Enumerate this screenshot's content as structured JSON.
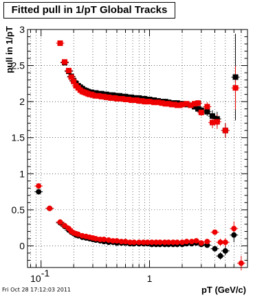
{
  "chart_data": {
    "type": "scatter",
    "title": "Fitted pull in 1/pT  Global Tracks",
    "xlabel": "pT (GeV/c)",
    "ylabel": "pull in 1/pT",
    "x_scale": "log",
    "xlim": [
      0.075,
      8.0
    ],
    "ylim": [
      -0.3,
      3.0
    ],
    "grid": true,
    "x_tick_labels": [
      {
        "value": 0.1,
        "label": "10",
        "sup": "-1"
      },
      {
        "value": 1,
        "label": "1",
        "sup": ""
      }
    ],
    "y_tick_labels": [
      "0",
      "0.5",
      "1",
      "1.5",
      "2",
      "2.5",
      "3"
    ],
    "series": [
      {
        "color": "#000000",
        "marker": "square",
        "x": [
          0.15,
          0.165,
          0.18,
          0.19,
          0.2,
          0.21,
          0.22,
          0.23,
          0.24,
          0.25,
          0.26,
          0.27,
          0.28,
          0.29,
          0.3,
          0.32,
          0.34,
          0.36,
          0.38,
          0.4,
          0.42,
          0.44,
          0.46,
          0.48,
          0.5,
          0.53,
          0.56,
          0.6,
          0.64,
          0.68,
          0.72,
          0.76,
          0.8,
          0.85,
          0.9,
          0.95,
          1.0,
          1.1,
          1.2,
          1.3,
          1.4,
          1.5,
          1.6,
          1.7,
          1.8,
          1.9,
          2.0,
          2.2,
          2.4,
          2.6,
          2.8,
          3.0,
          3.4,
          3.8,
          4.2,
          5.0,
          6.2
        ],
        "values": [
          2.81,
          2.54,
          2.42,
          2.35,
          2.29,
          2.25,
          2.22,
          2.2,
          2.18,
          2.16,
          2.15,
          2.14,
          2.13,
          2.13,
          2.12,
          2.12,
          2.11,
          2.11,
          2.1,
          2.1,
          2.09,
          2.09,
          2.09,
          2.08,
          2.08,
          2.08,
          2.07,
          2.07,
          2.06,
          2.06,
          2.05,
          2.05,
          2.05,
          2.04,
          2.04,
          2.03,
          2.03,
          2.02,
          2.01,
          2.0,
          2.0,
          1.99,
          1.98,
          1.98,
          1.98,
          1.97,
          1.97,
          1.96,
          1.95,
          1.93,
          1.9,
          1.88,
          1.86,
          1.8,
          1.76,
          1.6,
          2.34
        ],
        "errors": [
          0,
          0,
          0,
          0,
          0,
          0,
          0,
          0,
          0,
          0,
          0,
          0,
          0,
          0,
          0,
          0,
          0,
          0,
          0,
          0,
          0,
          0,
          0,
          0,
          0,
          0,
          0,
          0,
          0,
          0,
          0,
          0,
          0,
          0,
          0,
          0.01,
          0.01,
          0.01,
          0.01,
          0.02,
          0.02,
          0.02,
          0.02,
          0.02,
          0.02,
          0.03,
          0.03,
          0.03,
          0.03,
          0.04,
          0.04,
          0.05,
          0.06,
          0.08,
          0.1,
          0.1,
          0.6
        ]
      },
      {
        "color": "#ee0000",
        "marker": "square",
        "x": [
          0.15,
          0.165,
          0.18,
          0.19,
          0.2,
          0.21,
          0.22,
          0.23,
          0.24,
          0.25,
          0.26,
          0.27,
          0.28,
          0.29,
          0.3,
          0.32,
          0.34,
          0.36,
          0.38,
          0.4,
          0.42,
          0.44,
          0.46,
          0.48,
          0.5,
          0.53,
          0.56,
          0.6,
          0.64,
          0.68,
          0.72,
          0.76,
          0.8,
          0.85,
          0.9,
          0.95,
          1.0,
          1.1,
          1.2,
          1.3,
          1.4,
          1.5,
          1.6,
          1.7,
          1.8,
          1.9,
          2.0,
          2.2,
          2.4,
          2.6,
          2.8,
          3.0,
          3.4,
          3.8,
          4.2,
          5.0,
          6.2
        ],
        "values": [
          2.81,
          2.55,
          2.43,
          2.34,
          2.28,
          2.22,
          2.19,
          2.16,
          2.14,
          2.13,
          2.12,
          2.11,
          2.1,
          2.1,
          2.09,
          2.08,
          2.08,
          2.07,
          2.07,
          2.06,
          2.06,
          2.05,
          2.05,
          2.05,
          2.04,
          2.04,
          2.04,
          2.03,
          2.03,
          2.02,
          2.02,
          2.02,
          2.01,
          2.01,
          2.0,
          2.0,
          2.0,
          1.99,
          1.99,
          1.98,
          1.97,
          1.97,
          1.96,
          1.96,
          1.95,
          1.95,
          1.96,
          1.97,
          1.95,
          1.97,
          1.98,
          1.85,
          1.93,
          1.71,
          1.72,
          1.6,
          2.19
        ],
        "errors": [
          0,
          0,
          0,
          0,
          0,
          0,
          0,
          0,
          0,
          0,
          0,
          0,
          0,
          0,
          0,
          0,
          0,
          0,
          0,
          0,
          0,
          0,
          0,
          0,
          0,
          0,
          0,
          0,
          0,
          0,
          0,
          0,
          0,
          0,
          0,
          0.01,
          0.01,
          0.01,
          0.01,
          0.02,
          0.02,
          0.02,
          0.02,
          0.02,
          0.02,
          0.03,
          0.03,
          0.03,
          0.03,
          0.04,
          0.04,
          0.05,
          0.06,
          0.08,
          0.1,
          0.1,
          0.3
        ]
      },
      {
        "color": "#000000",
        "marker": "circle",
        "x": [
          0.095,
          0.12,
          0.15,
          0.165,
          0.18,
          0.19,
          0.2,
          0.21,
          0.22,
          0.24,
          0.26,
          0.28,
          0.3,
          0.32,
          0.35,
          0.38,
          0.42,
          0.46,
          0.5,
          0.55,
          0.6,
          0.66,
          0.72,
          0.8,
          0.88,
          0.96,
          1.05,
          1.15,
          1.25,
          1.38,
          1.5,
          1.65,
          1.8,
          2.0,
          2.2,
          2.45,
          2.7,
          3.0,
          3.4,
          4.0,
          4.5,
          5.0,
          6.0
        ],
        "values": [
          0.75,
          0.52,
          0.32,
          0.27,
          0.22,
          0.19,
          0.17,
          0.15,
          0.14,
          0.12,
          0.11,
          0.1,
          0.09,
          0.08,
          0.07,
          0.06,
          0.05,
          0.05,
          0.04,
          0.04,
          0.04,
          0.03,
          0.03,
          0.03,
          0.03,
          0.03,
          0.02,
          0.02,
          0.02,
          0.02,
          0.02,
          0.02,
          0.02,
          0.02,
          0.03,
          0.03,
          0.04,
          0.02,
          0.01,
          -0.04,
          -0.14,
          -0.07,
          0.15
        ],
        "errors": [
          0.02,
          0.01,
          0.01,
          0.01,
          0.01,
          0,
          0,
          0,
          0,
          0,
          0,
          0,
          0,
          0,
          0,
          0,
          0,
          0,
          0,
          0,
          0,
          0,
          0,
          0,
          0,
          0,
          0,
          0,
          0,
          0,
          0,
          0,
          0,
          0,
          0.01,
          0.01,
          0.01,
          0.02,
          0.02,
          0.03,
          0.05,
          0.06,
          0.1
        ]
      },
      {
        "color": "#ee0000",
        "marker": "circle",
        "x": [
          0.095,
          0.12,
          0.15,
          0.165,
          0.18,
          0.19,
          0.2,
          0.21,
          0.22,
          0.24,
          0.26,
          0.28,
          0.3,
          0.32,
          0.35,
          0.38,
          0.42,
          0.46,
          0.5,
          0.55,
          0.6,
          0.66,
          0.72,
          0.8,
          0.88,
          0.96,
          1.05,
          1.15,
          1.25,
          1.38,
          1.5,
          1.65,
          1.8,
          2.0,
          2.2,
          2.45,
          2.7,
          3.0,
          3.4,
          4.0,
          4.5,
          5.0,
          6.0,
          7.0
        ],
        "values": [
          0.83,
          0.52,
          0.33,
          0.28,
          0.24,
          0.2,
          0.18,
          0.17,
          0.16,
          0.14,
          0.13,
          0.12,
          0.11,
          0.1,
          0.09,
          0.09,
          0.08,
          0.07,
          0.07,
          0.06,
          0.06,
          0.05,
          0.05,
          0.05,
          0.05,
          0.05,
          0.05,
          0.05,
          0.05,
          0.05,
          0.05,
          0.05,
          0.05,
          0.05,
          0.06,
          0.06,
          0.07,
          0.04,
          0.06,
          0.19,
          0.05,
          0.05,
          0.24,
          -0.24
        ],
        "errors": [
          0.02,
          0.01,
          0.01,
          0.01,
          0.01,
          0,
          0,
          0,
          0,
          0,
          0,
          0,
          0,
          0,
          0,
          0,
          0,
          0,
          0,
          0,
          0,
          0,
          0,
          0,
          0,
          0,
          0,
          0,
          0,
          0,
          0,
          0,
          0,
          0,
          0.01,
          0.01,
          0.01,
          0.02,
          0.02,
          0.03,
          0.05,
          0.06,
          0.1,
          0.1
        ]
      }
    ]
  },
  "footer": "Fri Oct 28 17:12:03 2011"
}
